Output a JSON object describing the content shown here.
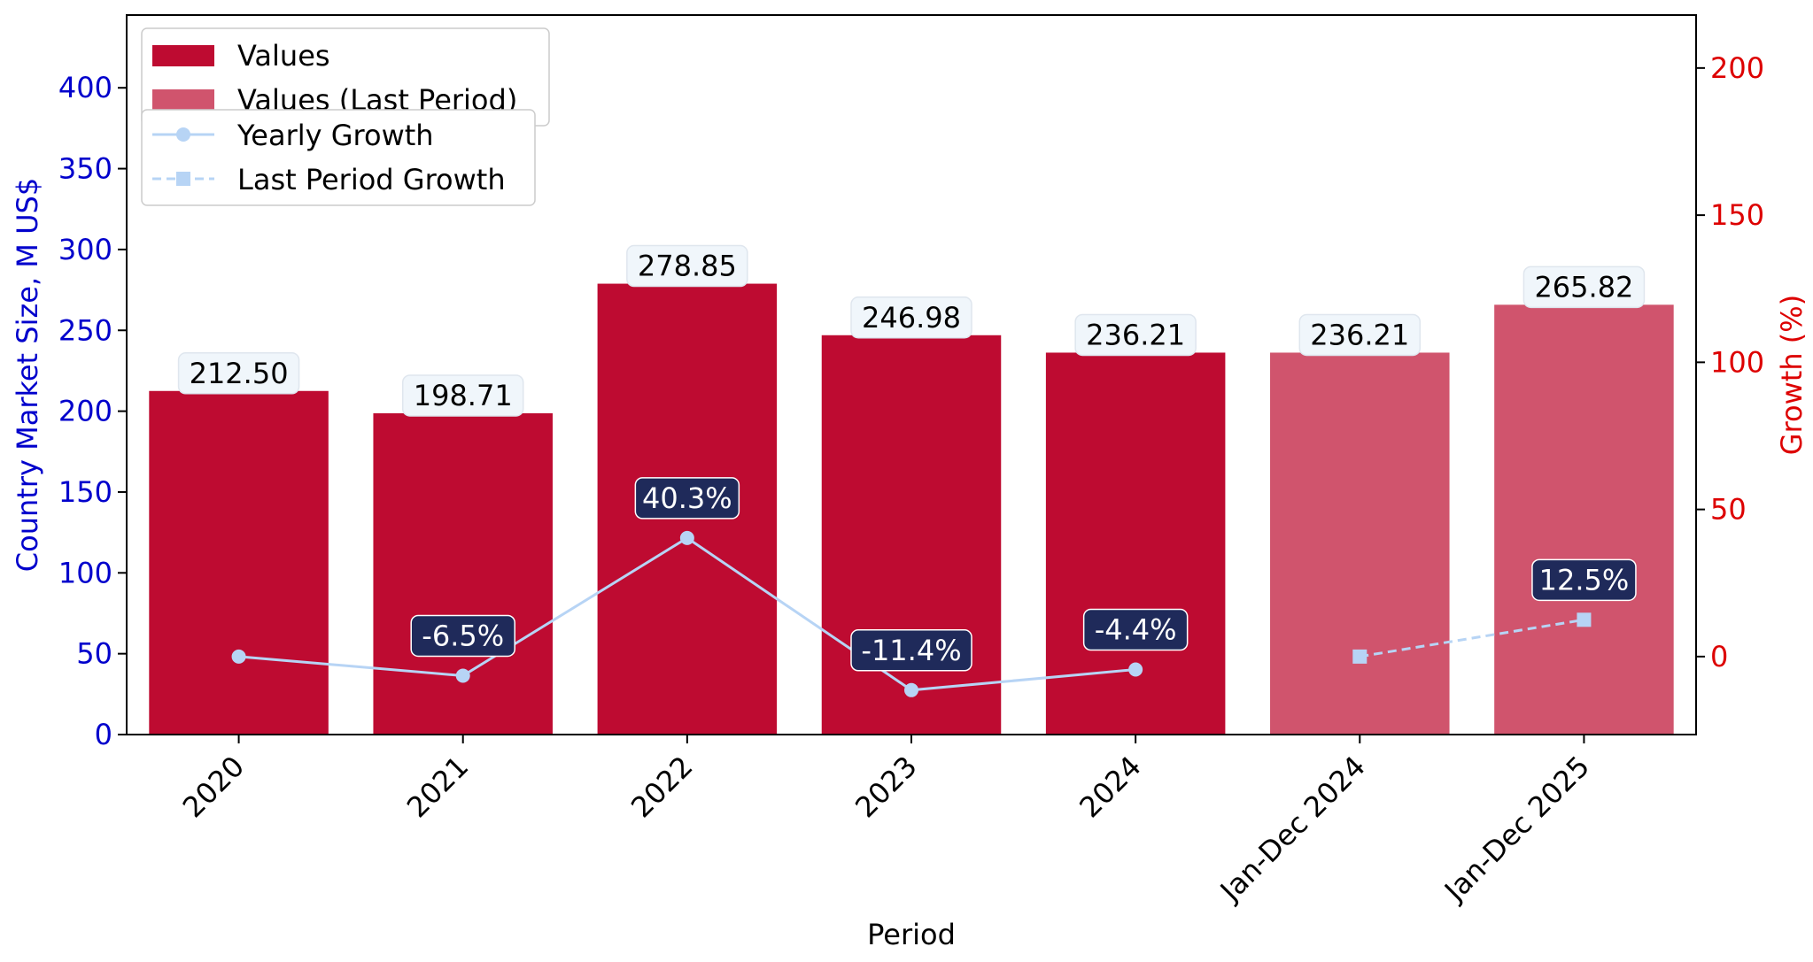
{
  "chart_data": {
    "type": "bar",
    "xlabel": "Period",
    "ylabel": "Country Market Size, M US$",
    "y2label": "Growth (%)",
    "categories": [
      "2020",
      "2021",
      "2022",
      "2023",
      "2024",
      "Jan-Dec 2024",
      "Jan-Dec 2025"
    ],
    "ylim": [
      0,
      445
    ],
    "y_ticks": [
      "0",
      "50",
      "100",
      "150",
      "200",
      "250",
      "300",
      "350",
      "400"
    ],
    "y2lim": [
      -26.5,
      218
    ],
    "y2_ticks": [
      "0",
      "50",
      "100",
      "150",
      "200"
    ],
    "grid": false,
    "legend_position": "top-left",
    "series": [
      {
        "name": "Values",
        "kind": "bar",
        "color": "#be0b31",
        "values": [
          212.5,
          198.71,
          278.85,
          246.98,
          236.21,
          null,
          null
        ],
        "labels": [
          "212.50",
          "198.71",
          "278.85",
          "246.98",
          "236.21",
          "",
          ""
        ]
      },
      {
        "name": "Values (Last Period)",
        "kind": "bar",
        "color": "#d0546d",
        "values": [
          null,
          null,
          null,
          null,
          null,
          236.21,
          265.82
        ],
        "labels": [
          "",
          "",
          "",
          "",
          "",
          "236.21",
          "265.82"
        ]
      },
      {
        "name": "Yearly Growth",
        "kind": "line",
        "axis": "right",
        "color": "#b7d4f5",
        "marker": "circle",
        "values": [
          0,
          -6.5,
          40.3,
          -11.4,
          -4.4,
          null,
          null
        ],
        "labels": [
          "",
          "-6.5%",
          "40.3%",
          "-11.4%",
          "-4.4%",
          "",
          ""
        ]
      },
      {
        "name": "Last Period Growth",
        "kind": "line",
        "axis": "right",
        "style": "dashed",
        "color": "#b7d4f5",
        "marker": "square",
        "values": [
          null,
          null,
          null,
          null,
          null,
          0,
          12.5
        ],
        "labels": [
          "",
          "",
          "",
          "",
          "",
          "",
          "12.5%"
        ]
      }
    ],
    "colors": {
      "left_axis": "#0000cc",
      "right_axis": "#dd0000",
      "value_label_bg": "#f0f6fb",
      "growth_label_bg": "#1f2a5a"
    }
  }
}
